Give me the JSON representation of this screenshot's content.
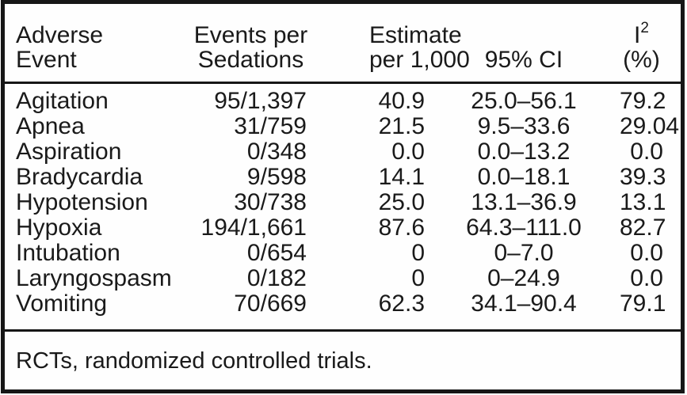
{
  "colors": {
    "ink": "#1a1a1a",
    "background": "#ffffff",
    "border": "#161616"
  },
  "table": {
    "header": {
      "col1_line1": "Adverse",
      "col1_line2": "Event",
      "col2_line1": "Events per",
      "col2_line2": "Sedations",
      "col3_line1": "Estimate",
      "col3_line2": "per 1,000",
      "col4_line2": "95% CI",
      "i_squared_base": "I",
      "i_squared_exp": "2",
      "col5_line2": "(%)"
    },
    "rows": [
      {
        "adverse_event": "Agitation",
        "events_per_sedations": "95/1,397",
        "estimate_per_1000": "40.9",
        "ci_95": "25.0–56.1",
        "i_squared_pct": "79.2"
      },
      {
        "adverse_event": "Apnea",
        "events_per_sedations": "31/759",
        "estimate_per_1000": "21.5",
        "ci_95": "9.5–33.6",
        "i_squared_pct": "29.04"
      },
      {
        "adverse_event": "Aspiration",
        "events_per_sedations": "0/348",
        "estimate_per_1000": "0.0",
        "ci_95": "0.0–13.2",
        "i_squared_pct": "0.0"
      },
      {
        "adverse_event": "Bradycardia",
        "events_per_sedations": "9/598",
        "estimate_per_1000": "14.1",
        "ci_95": "0.0–18.1",
        "i_squared_pct": "39.3"
      },
      {
        "adverse_event": "Hypotension",
        "events_per_sedations": "30/738",
        "estimate_per_1000": "25.0",
        "ci_95": "13.1–36.9",
        "i_squared_pct": "13.1"
      },
      {
        "adverse_event": "Hypoxia",
        "events_per_sedations": "194/1,661",
        "estimate_per_1000": "87.6",
        "ci_95": "64.3–111.0",
        "i_squared_pct": "82.7"
      },
      {
        "adverse_event": "Intubation",
        "events_per_sedations": "0/654",
        "estimate_per_1000": "0",
        "ci_95": "0–7.0",
        "i_squared_pct": "0.0"
      },
      {
        "adverse_event": "Laryngospasm",
        "events_per_sedations": "0/182",
        "estimate_per_1000": "0",
        "ci_95": "0–24.9",
        "i_squared_pct": "0.0"
      },
      {
        "adverse_event": "Vomiting",
        "events_per_sedations": "70/669",
        "estimate_per_1000": "62.3",
        "ci_95": "34.1–90.4",
        "i_squared_pct": "79.1"
      }
    ],
    "footnote": "RCTs, randomized controlled trials."
  }
}
